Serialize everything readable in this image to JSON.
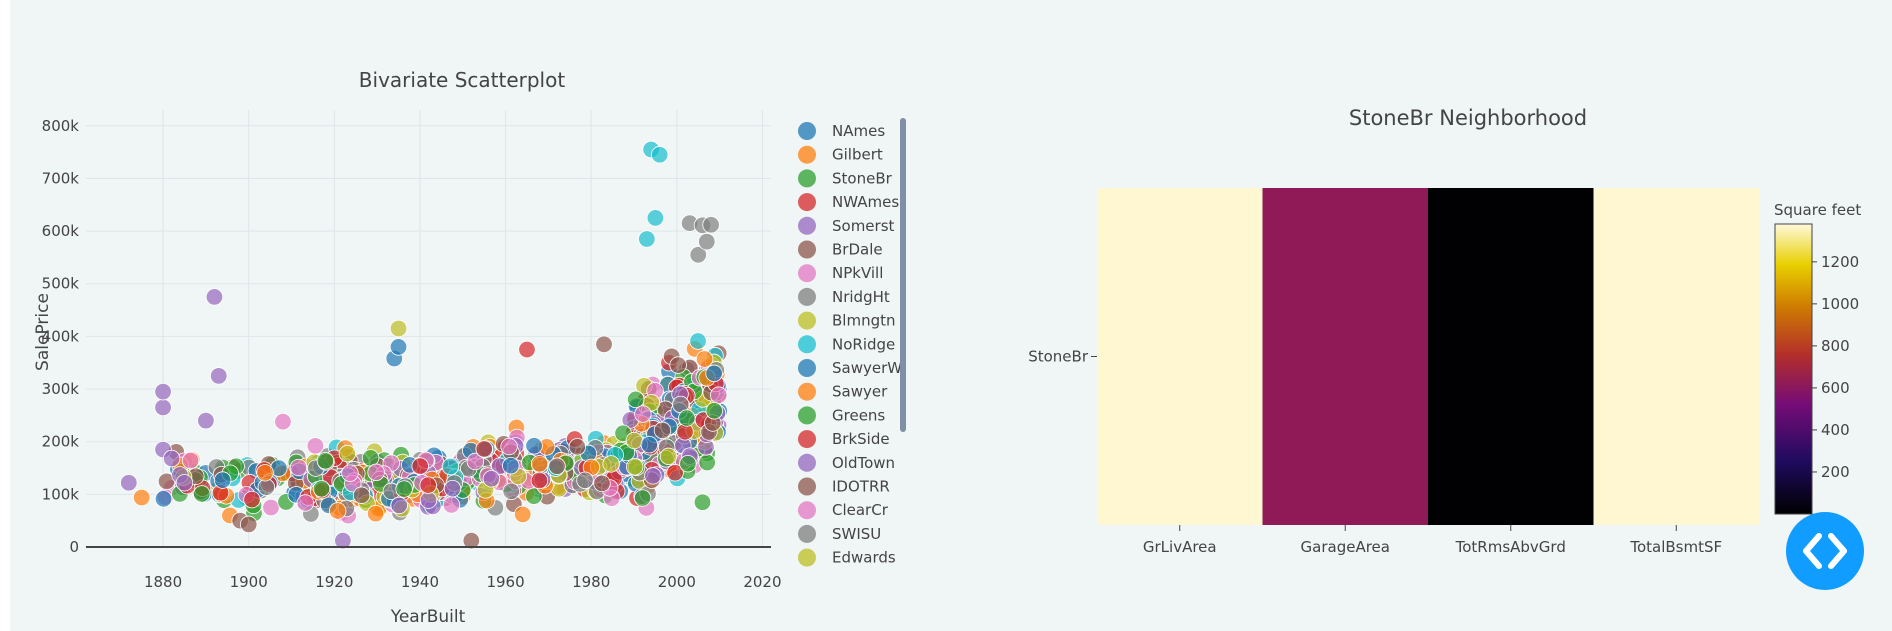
{
  "scatter": {
    "title": "Bivariate Scatterplot",
    "xlabel": "YearBuilt",
    "ylabel": "SalePrice",
    "xticks": [
      "1880",
      "1900",
      "1920",
      "1940",
      "1960",
      "1980",
      "2000",
      "2020"
    ],
    "yticks": [
      "0",
      "100k",
      "200k",
      "300k",
      "400k",
      "500k",
      "600k",
      "700k",
      "800k"
    ]
  },
  "heatmap": {
    "title": "StoneBr Neighborhood",
    "colorbar_title": "Square feet",
    "colorbar_ticks": [
      "1200",
      "1000",
      "800",
      "600",
      "400",
      "200"
    ]
  },
  "chart_data": [
    {
      "type": "scatter",
      "title": "Bivariate Scatterplot",
      "xlabel": "YearBuilt",
      "ylabel": "SalePrice",
      "xlim": [
        1862,
        2022
      ],
      "ylim": [
        0,
        830000
      ],
      "grid": true,
      "legend_position": "right",
      "series": [
        {
          "name": "NAmes",
          "color": "#1f77b4"
        },
        {
          "name": "Gilbert",
          "color": "#ff7f0e"
        },
        {
          "name": "StoneBr",
          "color": "#2ca02c"
        },
        {
          "name": "NWAmes",
          "color": "#d62728"
        },
        {
          "name": "Somerst",
          "color": "#9467bd"
        },
        {
          "name": "BrDale",
          "color": "#8c564b"
        },
        {
          "name": "NPkVill",
          "color": "#e377c2"
        },
        {
          "name": "NridgHt",
          "color": "#7f7f7f"
        },
        {
          "name": "Blmngtn",
          "color": "#bcbd22"
        },
        {
          "name": "NoRidge",
          "color": "#17becf"
        },
        {
          "name": "SawyerW",
          "color": "#1f77b4"
        },
        {
          "name": "Sawyer",
          "color": "#ff7f0e"
        },
        {
          "name": "Greens",
          "color": "#2ca02c"
        },
        {
          "name": "BrkSide",
          "color": "#d62728"
        },
        {
          "name": "OldTown",
          "color": "#9467bd"
        },
        {
          "name": "IDOTRR",
          "color": "#8c564b"
        },
        {
          "name": "ClearCr",
          "color": "#e377c2"
        },
        {
          "name": "SWISU",
          "color": "#7f7f7f"
        },
        {
          "name": "Edwards",
          "color": "#bcbd22"
        }
      ],
      "highlight_points": [
        {
          "x": 1872,
          "y": 122000,
          "c": "#9467bd"
        },
        {
          "x": 1875,
          "y": 94000,
          "c": "#ff7f0e"
        },
        {
          "x": 1880,
          "y": 185000,
          "c": "#9467bd"
        },
        {
          "x": 1880,
          "y": 265000,
          "c": "#9467bd"
        },
        {
          "x": 1880,
          "y": 295000,
          "c": "#9467bd"
        },
        {
          "x": 1882,
          "y": 168000,
          "c": "#9467bd"
        },
        {
          "x": 1885,
          "y": 122000,
          "c": "#9467bd"
        },
        {
          "x": 1890,
          "y": 240000,
          "c": "#9467bd"
        },
        {
          "x": 1892,
          "y": 475000,
          "c": "#9467bd"
        },
        {
          "x": 1893,
          "y": 325000,
          "c": "#9467bd"
        },
        {
          "x": 1898,
          "y": 50000,
          "c": "#8c564b"
        },
        {
          "x": 1900,
          "y": 43000,
          "c": "#8c564b"
        },
        {
          "x": 1908,
          "y": 238000,
          "c": "#e377c2"
        },
        {
          "x": 1922,
          "y": 12000,
          "c": "#9467bd"
        },
        {
          "x": 1934,
          "y": 358000,
          "c": "#1f77b4"
        },
        {
          "x": 1935,
          "y": 380000,
          "c": "#1f77b4"
        },
        {
          "x": 1935,
          "y": 415000,
          "c": "#bcbd22"
        },
        {
          "x": 1952,
          "y": 12000,
          "c": "#8c564b"
        },
        {
          "x": 1965,
          "y": 375000,
          "c": "#d62728"
        },
        {
          "x": 1964,
          "y": 62000,
          "c": "#ff7f0e"
        },
        {
          "x": 1983,
          "y": 385000,
          "c": "#8c564b"
        },
        {
          "x": 1993,
          "y": 585000,
          "c": "#17becf"
        },
        {
          "x": 1994,
          "y": 755000,
          "c": "#17becf"
        },
        {
          "x": 1996,
          "y": 745000,
          "c": "#17becf"
        },
        {
          "x": 1995,
          "y": 625000,
          "c": "#17becf"
        },
        {
          "x": 2003,
          "y": 615000,
          "c": "#7f7f7f"
        },
        {
          "x": 2006,
          "y": 611000,
          "c": "#7f7f7f"
        },
        {
          "x": 2008,
          "y": 612000,
          "c": "#7f7f7f"
        },
        {
          "x": 2005,
          "y": 555000,
          "c": "#7f7f7f"
        },
        {
          "x": 2007,
          "y": 580000,
          "c": "#7f7f7f"
        },
        {
          "x": 2006,
          "y": 85000,
          "c": "#2ca02c"
        },
        {
          "x": 1992,
          "y": 93000,
          "c": "#2ca02c"
        }
      ]
    },
    {
      "type": "heatmap",
      "title": "StoneBr Neighborhood",
      "x": [
        "GrLivArea",
        "GarageArea",
        "TotRmsAbvGrd",
        "TotalBsmtSF"
      ],
      "y": [
        "StoneBr"
      ],
      "z": [
        [
          1370,
          620,
          8,
          1370
        ]
      ],
      "colorbar_title": "Square feet",
      "colorscale": "hot",
      "zlim": [
        0,
        1380
      ]
    }
  ]
}
